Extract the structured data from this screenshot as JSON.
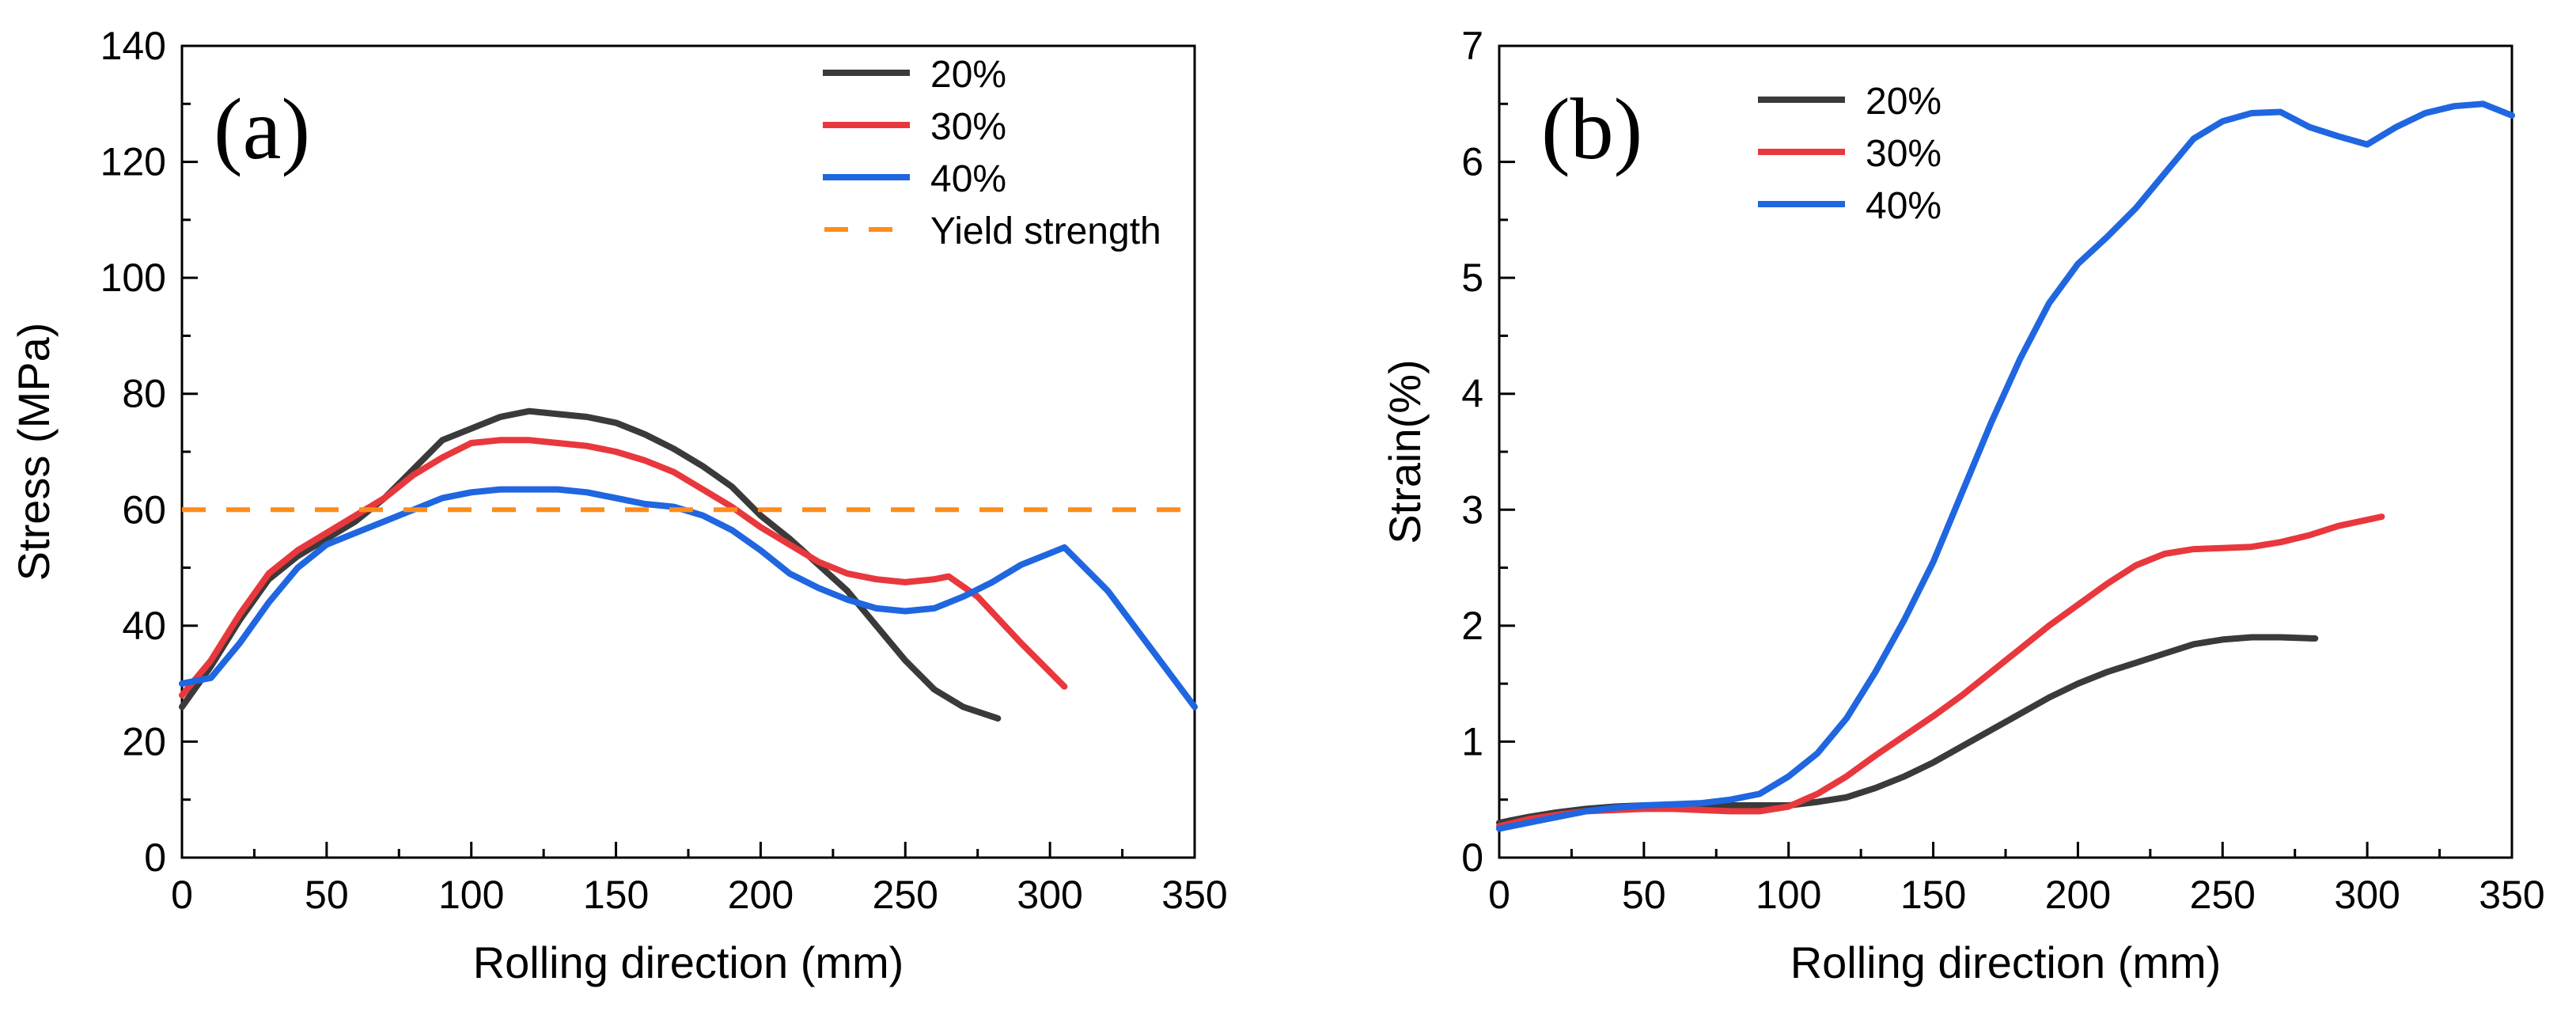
{
  "chart_data": [
    {
      "type": "line",
      "panel_label": "(a)",
      "xlabel": "Rolling direction (mm)",
      "ylabel": "Stress (MPa)",
      "xlim": [
        0,
        350
      ],
      "ylim": [
        0,
        140
      ],
      "xticks": [
        0,
        50,
        100,
        150,
        200,
        250,
        300,
        350
      ],
      "yticks": [
        0,
        20,
        40,
        60,
        80,
        100,
        120,
        140
      ],
      "legend_position": "top-right",
      "series": [
        {
          "name": "20%",
          "color": "#3a3a3a",
          "x": [
            0,
            10,
            20,
            30,
            40,
            50,
            60,
            70,
            80,
            90,
            100,
            110,
            120,
            130,
            140,
            150,
            160,
            170,
            180,
            190,
            200,
            210,
            220,
            230,
            240,
            250,
            260,
            270,
            282
          ],
          "y": [
            26,
            33,
            41,
            48,
            52,
            55,
            58,
            62,
            67,
            72,
            74,
            76,
            77,
            76.5,
            76,
            75,
            73,
            70.5,
            67.5,
            64,
            59,
            55,
            50.5,
            46,
            40,
            34,
            29,
            26,
            24
          ]
        },
        {
          "name": "30%",
          "color": "#e8383d",
          "x": [
            0,
            10,
            20,
            30,
            40,
            50,
            60,
            70,
            80,
            90,
            100,
            110,
            120,
            130,
            140,
            150,
            160,
            170,
            180,
            190,
            200,
            210,
            220,
            230,
            240,
            250,
            260,
            265,
            275,
            290,
            305
          ],
          "y": [
            28,
            34,
            42,
            49,
            53,
            56,
            59,
            62,
            66,
            69,
            71.5,
            72,
            72,
            71.5,
            71,
            70,
            68.5,
            66.5,
            63.5,
            60.5,
            57,
            54,
            51,
            49,
            48,
            47.5,
            48,
            48.5,
            45,
            37,
            29.5
          ]
        },
        {
          "name": "40%",
          "color": "#1f66e0",
          "x": [
            0,
            10,
            20,
            30,
            40,
            50,
            60,
            70,
            80,
            90,
            100,
            110,
            120,
            130,
            140,
            150,
            160,
            170,
            180,
            190,
            200,
            210,
            220,
            230,
            240,
            250,
            260,
            270,
            280,
            290,
            305,
            320,
            335,
            350
          ],
          "y": [
            30,
            31,
            37,
            44,
            50,
            54,
            56,
            58,
            60,
            62,
            63,
            63.5,
            63.5,
            63.5,
            63,
            62,
            61,
            60.5,
            59,
            56.5,
            53,
            49,
            46.5,
            44.5,
            43,
            42.5,
            43,
            45,
            47.5,
            50.5,
            53.5,
            46,
            36,
            26
          ]
        },
        {
          "name": "Yield strength",
          "color": "#ff8c1a",
          "dashed": true,
          "x": [
            0,
            350
          ],
          "y": [
            60,
            60
          ]
        }
      ]
    },
    {
      "type": "line",
      "panel_label": "(b)",
      "xlabel": "Rolling direction (mm)",
      "ylabel": "Strain(%)",
      "xlim": [
        0,
        350
      ],
      "ylim": [
        0,
        7
      ],
      "xticks": [
        0,
        50,
        100,
        150,
        200,
        250,
        300,
        350
      ],
      "yticks": [
        0,
        1,
        2,
        3,
        4,
        5,
        6,
        7
      ],
      "legend_position": "top-left",
      "series": [
        {
          "name": "20%",
          "color": "#3a3a3a",
          "x": [
            0,
            10,
            20,
            30,
            40,
            50,
            60,
            70,
            80,
            90,
            100,
            110,
            120,
            130,
            140,
            150,
            160,
            170,
            180,
            190,
            200,
            210,
            220,
            230,
            240,
            250,
            260,
            270,
            282
          ],
          "y": [
            0.3,
            0.35,
            0.39,
            0.42,
            0.44,
            0.45,
            0.45,
            0.45,
            0.45,
            0.45,
            0.45,
            0.48,
            0.52,
            0.6,
            0.7,
            0.82,
            0.96,
            1.1,
            1.24,
            1.38,
            1.5,
            1.6,
            1.68,
            1.76,
            1.84,
            1.88,
            1.9,
            1.9,
            1.89
          ]
        },
        {
          "name": "30%",
          "color": "#e8383d",
          "x": [
            0,
            10,
            20,
            30,
            40,
            50,
            60,
            70,
            80,
            90,
            100,
            110,
            120,
            130,
            140,
            150,
            160,
            170,
            180,
            190,
            200,
            210,
            220,
            230,
            240,
            250,
            260,
            270,
            280,
            290,
            305
          ],
          "y": [
            0.27,
            0.33,
            0.37,
            0.4,
            0.41,
            0.42,
            0.42,
            0.41,
            0.4,
            0.4,
            0.44,
            0.55,
            0.7,
            0.88,
            1.05,
            1.22,
            1.4,
            1.6,
            1.8,
            2.0,
            2.18,
            2.36,
            2.52,
            2.62,
            2.66,
            2.67,
            2.68,
            2.72,
            2.78,
            2.86,
            2.94
          ]
        },
        {
          "name": "40%",
          "color": "#1f66e0",
          "x": [
            0,
            10,
            20,
            30,
            40,
            50,
            60,
            70,
            80,
            90,
            100,
            110,
            120,
            130,
            140,
            150,
            160,
            170,
            180,
            190,
            200,
            210,
            220,
            230,
            240,
            250,
            260,
            270,
            280,
            290,
            300,
            310,
            320,
            330,
            340,
            350
          ],
          "y": [
            0.25,
            0.3,
            0.35,
            0.4,
            0.43,
            0.45,
            0.46,
            0.47,
            0.5,
            0.55,
            0.7,
            0.9,
            1.2,
            1.6,
            2.05,
            2.55,
            3.15,
            3.75,
            4.3,
            4.78,
            5.12,
            5.35,
            5.6,
            5.9,
            6.2,
            6.35,
            6.42,
            6.43,
            6.3,
            6.22,
            6.15,
            6.3,
            6.42,
            6.48,
            6.5,
            6.4
          ]
        }
      ]
    }
  ]
}
